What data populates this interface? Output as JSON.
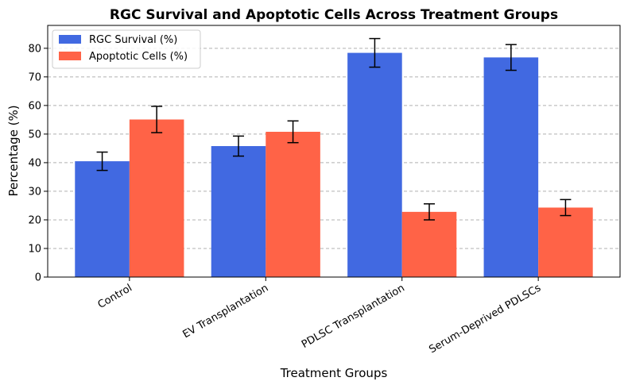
{
  "chart_data": {
    "type": "bar",
    "title": "RGC Survival and Apoptotic Cells Across Treatment Groups",
    "xlabel": "Treatment Groups",
    "ylabel": "Percentage (%)",
    "categories": [
      "Control",
      "EV Transplantation",
      "PDLSC Transplantation",
      "Serum-Deprived PDLSCs"
    ],
    "ylim": [
      0,
      88
    ],
    "yticks": [
      0,
      10,
      20,
      30,
      40,
      50,
      60,
      70,
      80
    ],
    "grid": "y, dashed",
    "legend_position": "top-left",
    "series": [
      {
        "name": "RGC Survival (%)",
        "color": "#4169e1",
        "values": [
          40.5,
          45.8,
          78.4,
          76.8
        ],
        "errors": [
          3.2,
          3.5,
          5.0,
          4.5
        ]
      },
      {
        "name": "Apoptotic Cells (%)",
        "color": "#ff6347",
        "values": [
          55.1,
          50.8,
          22.8,
          24.3
        ],
        "errors": [
          4.6,
          3.8,
          2.8,
          2.8
        ]
      }
    ]
  }
}
